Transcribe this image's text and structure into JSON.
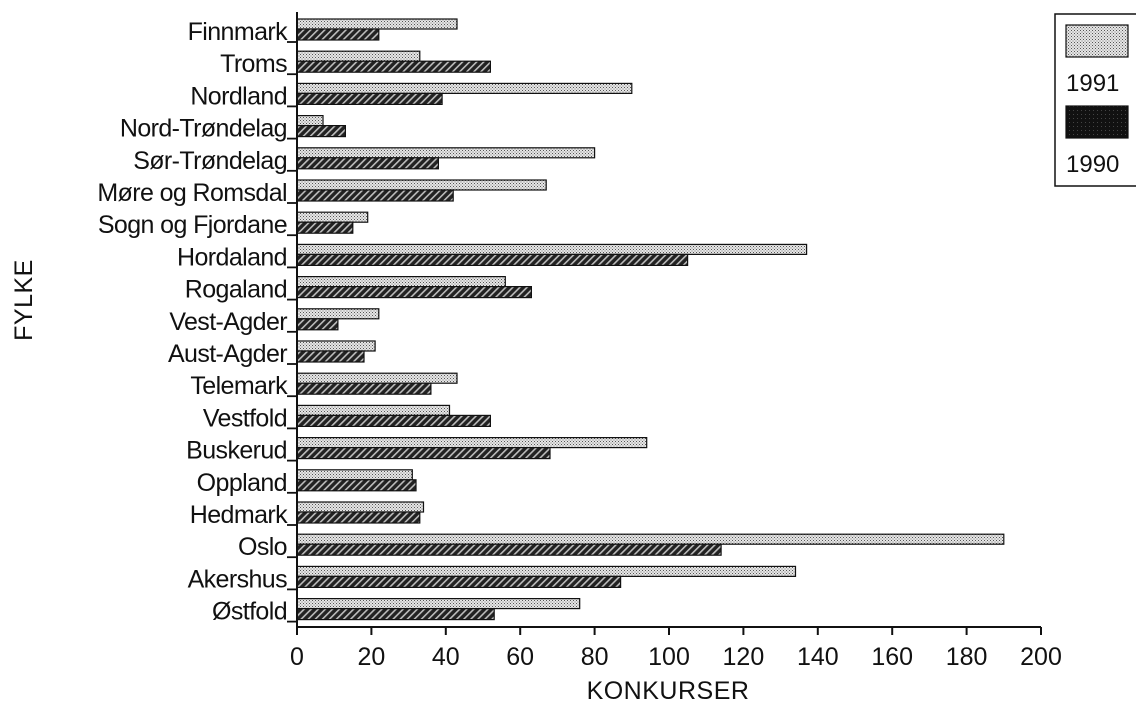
{
  "chart_data": {
    "type": "bar",
    "orientation": "horizontal",
    "xlabel": "KONKURSER",
    "ylabel": "FYLKE",
    "xlim": [
      0,
      200
    ],
    "xticks": [
      0,
      20,
      40,
      60,
      80,
      100,
      120,
      140,
      160,
      180,
      200
    ],
    "grid": false,
    "legend_position": "top-right",
    "categories": [
      "Finnmark",
      "Troms",
      "Nordland",
      "Nord-Trøndelag",
      "Sør-Trøndelag",
      "Møre og Romsdal",
      "Sogn og Fjordane",
      "Hordaland",
      "Rogaland",
      "Vest-Agder",
      "Aust-Agder",
      "Telemark",
      "Vestfold",
      "Buskerud",
      "Oppland",
      "Hedmark",
      "Oslo",
      "Akershus",
      "Østfold"
    ],
    "series": [
      {
        "name": "1991",
        "values": [
          43,
          33,
          90,
          7,
          80,
          67,
          19,
          137,
          56,
          22,
          21,
          43,
          41,
          94,
          31,
          34,
          190,
          134,
          76
        ]
      },
      {
        "name": "1990",
        "values": [
          22,
          52,
          39,
          13,
          38,
          42,
          15,
          105,
          63,
          11,
          18,
          36,
          52,
          68,
          32,
          33,
          114,
          87,
          53
        ]
      }
    ]
  }
}
